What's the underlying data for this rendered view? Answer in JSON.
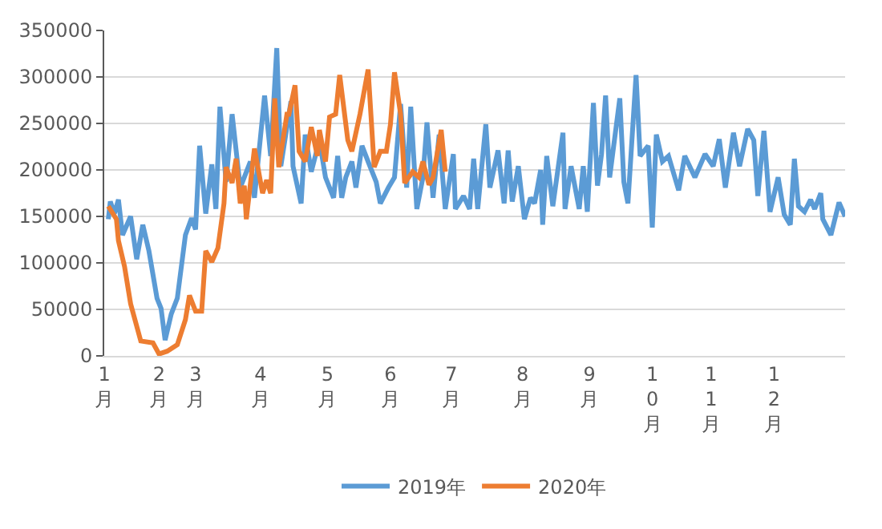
{
  "chart_data": {
    "type": "line",
    "categories": [
      "1月",
      null,
      null,
      null,
      null,
      null,
      null,
      null,
      null,
      null,
      null,
      null,
      null,
      null,
      null,
      null,
      null,
      null,
      null,
      null,
      null,
      null,
      null,
      null,
      null,
      null,
      null,
      "2月",
      null,
      null,
      null,
      null,
      null,
      null,
      null,
      null,
      null,
      null,
      null,
      null,
      null,
      null,
      null,
      null,
      null,
      "3月",
      null,
      null,
      null,
      null,
      null,
      null,
      null,
      null,
      null,
      null,
      null,
      null,
      null,
      null,
      null,
      null,
      null,
      null,
      null,
      null,
      null,
      null,
      null,
      null,
      null,
      null,
      null,
      null,
      null,
      null,
      null,
      "4月",
      null,
      null,
      null,
      null,
      null,
      null,
      null,
      null,
      null,
      null,
      null,
      null,
      null,
      null,
      null,
      null,
      null,
      null,
      null,
      null,
      null,
      null,
      null,
      null,
      null,
      null,
      null,
      null,
      null,
      null,
      null,
      null,
      "5月",
      null,
      null,
      null,
      null,
      null,
      null,
      null,
      null,
      null,
      null,
      null,
      null,
      null,
      null,
      null,
      null,
      null,
      null,
      null,
      null,
      null,
      null,
      null,
      null,
      null,
      null,
      null,
      null,
      null,
      null,
      "6月",
      null,
      null,
      null,
      null,
      null,
      null,
      null,
      null,
      null,
      null,
      null,
      null,
      null,
      null,
      null,
      null,
      null,
      null,
      null,
      null,
      null,
      null,
      null,
      null,
      null,
      null,
      null,
      null,
      null,
      "7月",
      null,
      null,
      null,
      null,
      null,
      null,
      null,
      null,
      null,
      null,
      null,
      null,
      null,
      null,
      null,
      null,
      null,
      null,
      null,
      null,
      null,
      null,
      null,
      null,
      null,
      null,
      null,
      null,
      null,
      null,
      null,
      null,
      null,
      null,
      "8月",
      null,
      null,
      null,
      null,
      null,
      null,
      null,
      null,
      null,
      null,
      null,
      null,
      null,
      null,
      null,
      null,
      null,
      null,
      null,
      null,
      null,
      null,
      null,
      null,
      null,
      null,
      null,
      null,
      null,
      null,
      null,
      null,
      "9月",
      null,
      null,
      null,
      null,
      null,
      null,
      null,
      null,
      null,
      null,
      null,
      null,
      null,
      null,
      null,
      null,
      null,
      null,
      null,
      null,
      null,
      null,
      null,
      null,
      null,
      null,
      null,
      null,
      null,
      null,
      "10月",
      null,
      null,
      null,
      null,
      null,
      null,
      null,
      null,
      null,
      null,
      null,
      null,
      null,
      null,
      null,
      null,
      null,
      null,
      null,
      null,
      null,
      null,
      null,
      null,
      null,
      null,
      null,
      null,
      "11月",
      null,
      null,
      null,
      null,
      null,
      null,
      null,
      null,
      null,
      null,
      null,
      null,
      null,
      null,
      null,
      null,
      null,
      null,
      null,
      null,
      null,
      null,
      null,
      null,
      null,
      null,
      null,
      null,
      null,
      null,
      "12月",
      null,
      null,
      null,
      null,
      null,
      null,
      null,
      null,
      null,
      null,
      null,
      null,
      null,
      null,
      null,
      null,
      null,
      null,
      null,
      null,
      null,
      null,
      null,
      null,
      null,
      null,
      null,
      null,
      null,
      null,
      null,
      null,
      null,
      null,
      null
    ],
    "series": [
      {
        "name": "2019年",
        "color": "#5b9bd5",
        "values": [
          null,
          null,
          147000,
          166000,
          null,
          153000,
          null,
          168000,
          null,
          130000,
          null,
          null,
          null,
          150000,
          null,
          null,
          104000,
          null,
          null,
          141000,
          null,
          null,
          113000,
          null,
          null,
          null,
          62000,
          null,
          51000,
          null,
          17000,
          null,
          null,
          45000,
          null,
          null,
          62000,
          null,
          null,
          null,
          130000,
          null,
          null,
          148000,
          null,
          136000,
          null,
          226000,
          null,
          null,
          153000,
          null,
          null,
          206000,
          null,
          158000,
          null,
          268000,
          null,
          null,
          187000,
          null,
          null,
          260000,
          null,
          null,
          null,
          181000,
          null,
          null,
          null,
          null,
          209000,
          null,
          170000,
          null,
          null,
          null,
          null,
          280000,
          null,
          null,
          215000,
          null,
          null,
          331000,
          null,
          204000,
          null,
          null,
          null,
          null,
          274000,
          204000,
          null,
          null,
          null,
          164000,
          null,
          238000,
          null,
          null,
          198000,
          null,
          null,
          null,
          232000,
          null,
          null,
          192000,
          null,
          null,
          null,
          170000,
          null,
          215000,
          null,
          170000,
          null,
          192000,
          null,
          null,
          209000,
          null,
          181000,
          null,
          null,
          226000,
          null,
          null,
          209000,
          null,
          null,
          null,
          187000,
          null,
          164000,
          null,
          null,
          null,
          181000,
          null,
          null,
          192000,
          null,
          null,
          271000,
          null,
          null,
          181000,
          null,
          268000,
          null,
          null,
          158000,
          null,
          null,
          192000,
          null,
          251000,
          null,
          null,
          170000,
          null,
          null,
          238000,
          null,
          null,
          158000,
          null,
          null,
          null,
          217000,
          158000,
          null,
          null,
          null,
          172000,
          null,
          null,
          158000,
          null,
          212000,
          null,
          158000,
          null,
          null,
          null,
          249000,
          null,
          181000,
          null,
          null,
          null,
          221000,
          null,
          null,
          164000,
          null,
          221000,
          null,
          166000,
          null,
          null,
          204000,
          null,
          null,
          147000,
          null,
          null,
          170000,
          null,
          164000,
          null,
          null,
          200000,
          141000,
          null,
          215000,
          null,
          null,
          161000,
          null,
          null,
          null,
          null,
          240000,
          158000,
          null,
          null,
          204000,
          null,
          null,
          null,
          158000,
          null,
          204000,
          null,
          155000,
          null,
          null,
          272000,
          null,
          183000,
          null,
          217000,
          null,
          280000,
          null,
          192000,
          null,
          226000,
          null,
          null,
          277000,
          null,
          187000,
          null,
          164000,
          null,
          null,
          null,
          302000,
          null,
          215000,
          null,
          null,
          null,
          226000,
          null,
          138000,
          null,
          238000,
          null,
          null,
          209000,
          null,
          null,
          215000,
          null,
          null,
          null,
          null,
          178000,
          null,
          null,
          215000,
          null,
          null,
          null,
          null,
          192000,
          null,
          null,
          null,
          null,
          217000,
          null,
          null,
          null,
          204000,
          null,
          null,
          233000,
          null,
          null,
          181000,
          null,
          null,
          null,
          240000,
          null,
          null,
          204000,
          null,
          null,
          null,
          244000,
          null,
          null,
          232000,
          null,
          172000,
          null,
          null,
          242000,
          null,
          null,
          155000,
          null,
          null,
          null,
          192000,
          null,
          null,
          152000,
          null,
          null,
          141000,
          null,
          212000,
          null,
          161000,
          null,
          null,
          155000,
          null,
          null,
          168000,
          null,
          158000,
          null,
          null,
          175000,
          147000,
          null,
          null,
          null,
          130000,
          null,
          null,
          null,
          165000,
          null,
          null,
          150000
        ]
      },
      {
        "name": "2020年",
        "color": "#ed7d31",
        "values": [
          null,
          null,
          161000,
          null,
          null,
          null,
          147000,
          124000,
          null,
          null,
          96000,
          null,
          null,
          56000,
          null,
          null,
          null,
          null,
          16000,
          null,
          null,
          null,
          null,
          null,
          14000,
          null,
          null,
          2000,
          null,
          null,
          null,
          5000,
          null,
          null,
          null,
          null,
          12000,
          null,
          null,
          null,
          39000,
          null,
          65000,
          null,
          null,
          48000,
          null,
          null,
          48000,
          null,
          113000,
          null,
          null,
          101000,
          null,
          null,
          116000,
          null,
          null,
          164000,
          203000,
          null,
          null,
          186000,
          null,
          212000,
          null,
          164000,
          null,
          183000,
          147000,
          null,
          null,
          null,
          223000,
          null,
          null,
          null,
          175000,
          null,
          189000,
          null,
          175000,
          null,
          277000,
          null,
          203000,
          null,
          null,
          null,
          260000,
          260000,
          null,
          null,
          291000,
          null,
          220000,
          null,
          null,
          209000,
          null,
          null,
          246000,
          null,
          null,
          215000,
          243000,
          null,
          null,
          209000,
          null,
          257000,
          null,
          null,
          260000,
          null,
          302000,
          null,
          null,
          null,
          232000,
          null,
          220000,
          null,
          null,
          null,
          260000,
          null,
          null,
          null,
          308000,
          null,
          null,
          203000,
          null,
          null,
          220000,
          null,
          null,
          220000,
          null,
          249000,
          null,
          305000,
          null,
          null,
          260000,
          null,
          186000,
          null,
          null,
          null,
          198000,
          null,
          null,
          192000,
          null,
          209000,
          null,
          null,
          184000,
          null,
          192000,
          null,
          null,
          null,
          243000,
          null,
          198000,
          null,
          null,
          null,
          null,
          null,
          null,
          null,
          null,
          null,
          null,
          null,
          null,
          null,
          null,
          null,
          null,
          null,
          null,
          null,
          null,
          null,
          null,
          null,
          null,
          null,
          null,
          null,
          null,
          null,
          null,
          null,
          null,
          null,
          null,
          null,
          null,
          null,
          null,
          null,
          null,
          null,
          null,
          null,
          null,
          null,
          null,
          null,
          null,
          null,
          null,
          null,
          null,
          null,
          null,
          null,
          null,
          null,
          null,
          null,
          null,
          null,
          null,
          null,
          null,
          null,
          null,
          null,
          null,
          null,
          null,
          null,
          null,
          null,
          null,
          null,
          null,
          null,
          null,
          null,
          null,
          null,
          null,
          null,
          null,
          null,
          null,
          null,
          null,
          null,
          null,
          null,
          null,
          null,
          null,
          null,
          null,
          null,
          null,
          null,
          null,
          null,
          null,
          null,
          null,
          null,
          null,
          null,
          null,
          null,
          null,
          null,
          null,
          null,
          null,
          null,
          null,
          null,
          null,
          null,
          null,
          null,
          null,
          null,
          null,
          null,
          null,
          null,
          null,
          null,
          null,
          null,
          null,
          null,
          null,
          null,
          null,
          null,
          null,
          null,
          null,
          null,
          null,
          null,
          null,
          null,
          null,
          null,
          null,
          null,
          null,
          null,
          null,
          null,
          null,
          null,
          null,
          null,
          null,
          null,
          null,
          null,
          null,
          null,
          null,
          null,
          null,
          null,
          null,
          null,
          null,
          null,
          null,
          null,
          null,
          null,
          null,
          null,
          null,
          null,
          null,
          null,
          null,
          null,
          null,
          null,
          null,
          null,
          null,
          null,
          null,
          null,
          null,
          null,
          null,
          null,
          null,
          null
        ]
      }
    ],
    "ylim": [
      0,
      350000
    ],
    "yticks": [
      0,
      50000,
      100000,
      150000,
      200000,
      250000,
      300000,
      350000
    ],
    "grid": "y",
    "legend": "bottom",
    "marker": "none",
    "line_style": "solid"
  }
}
